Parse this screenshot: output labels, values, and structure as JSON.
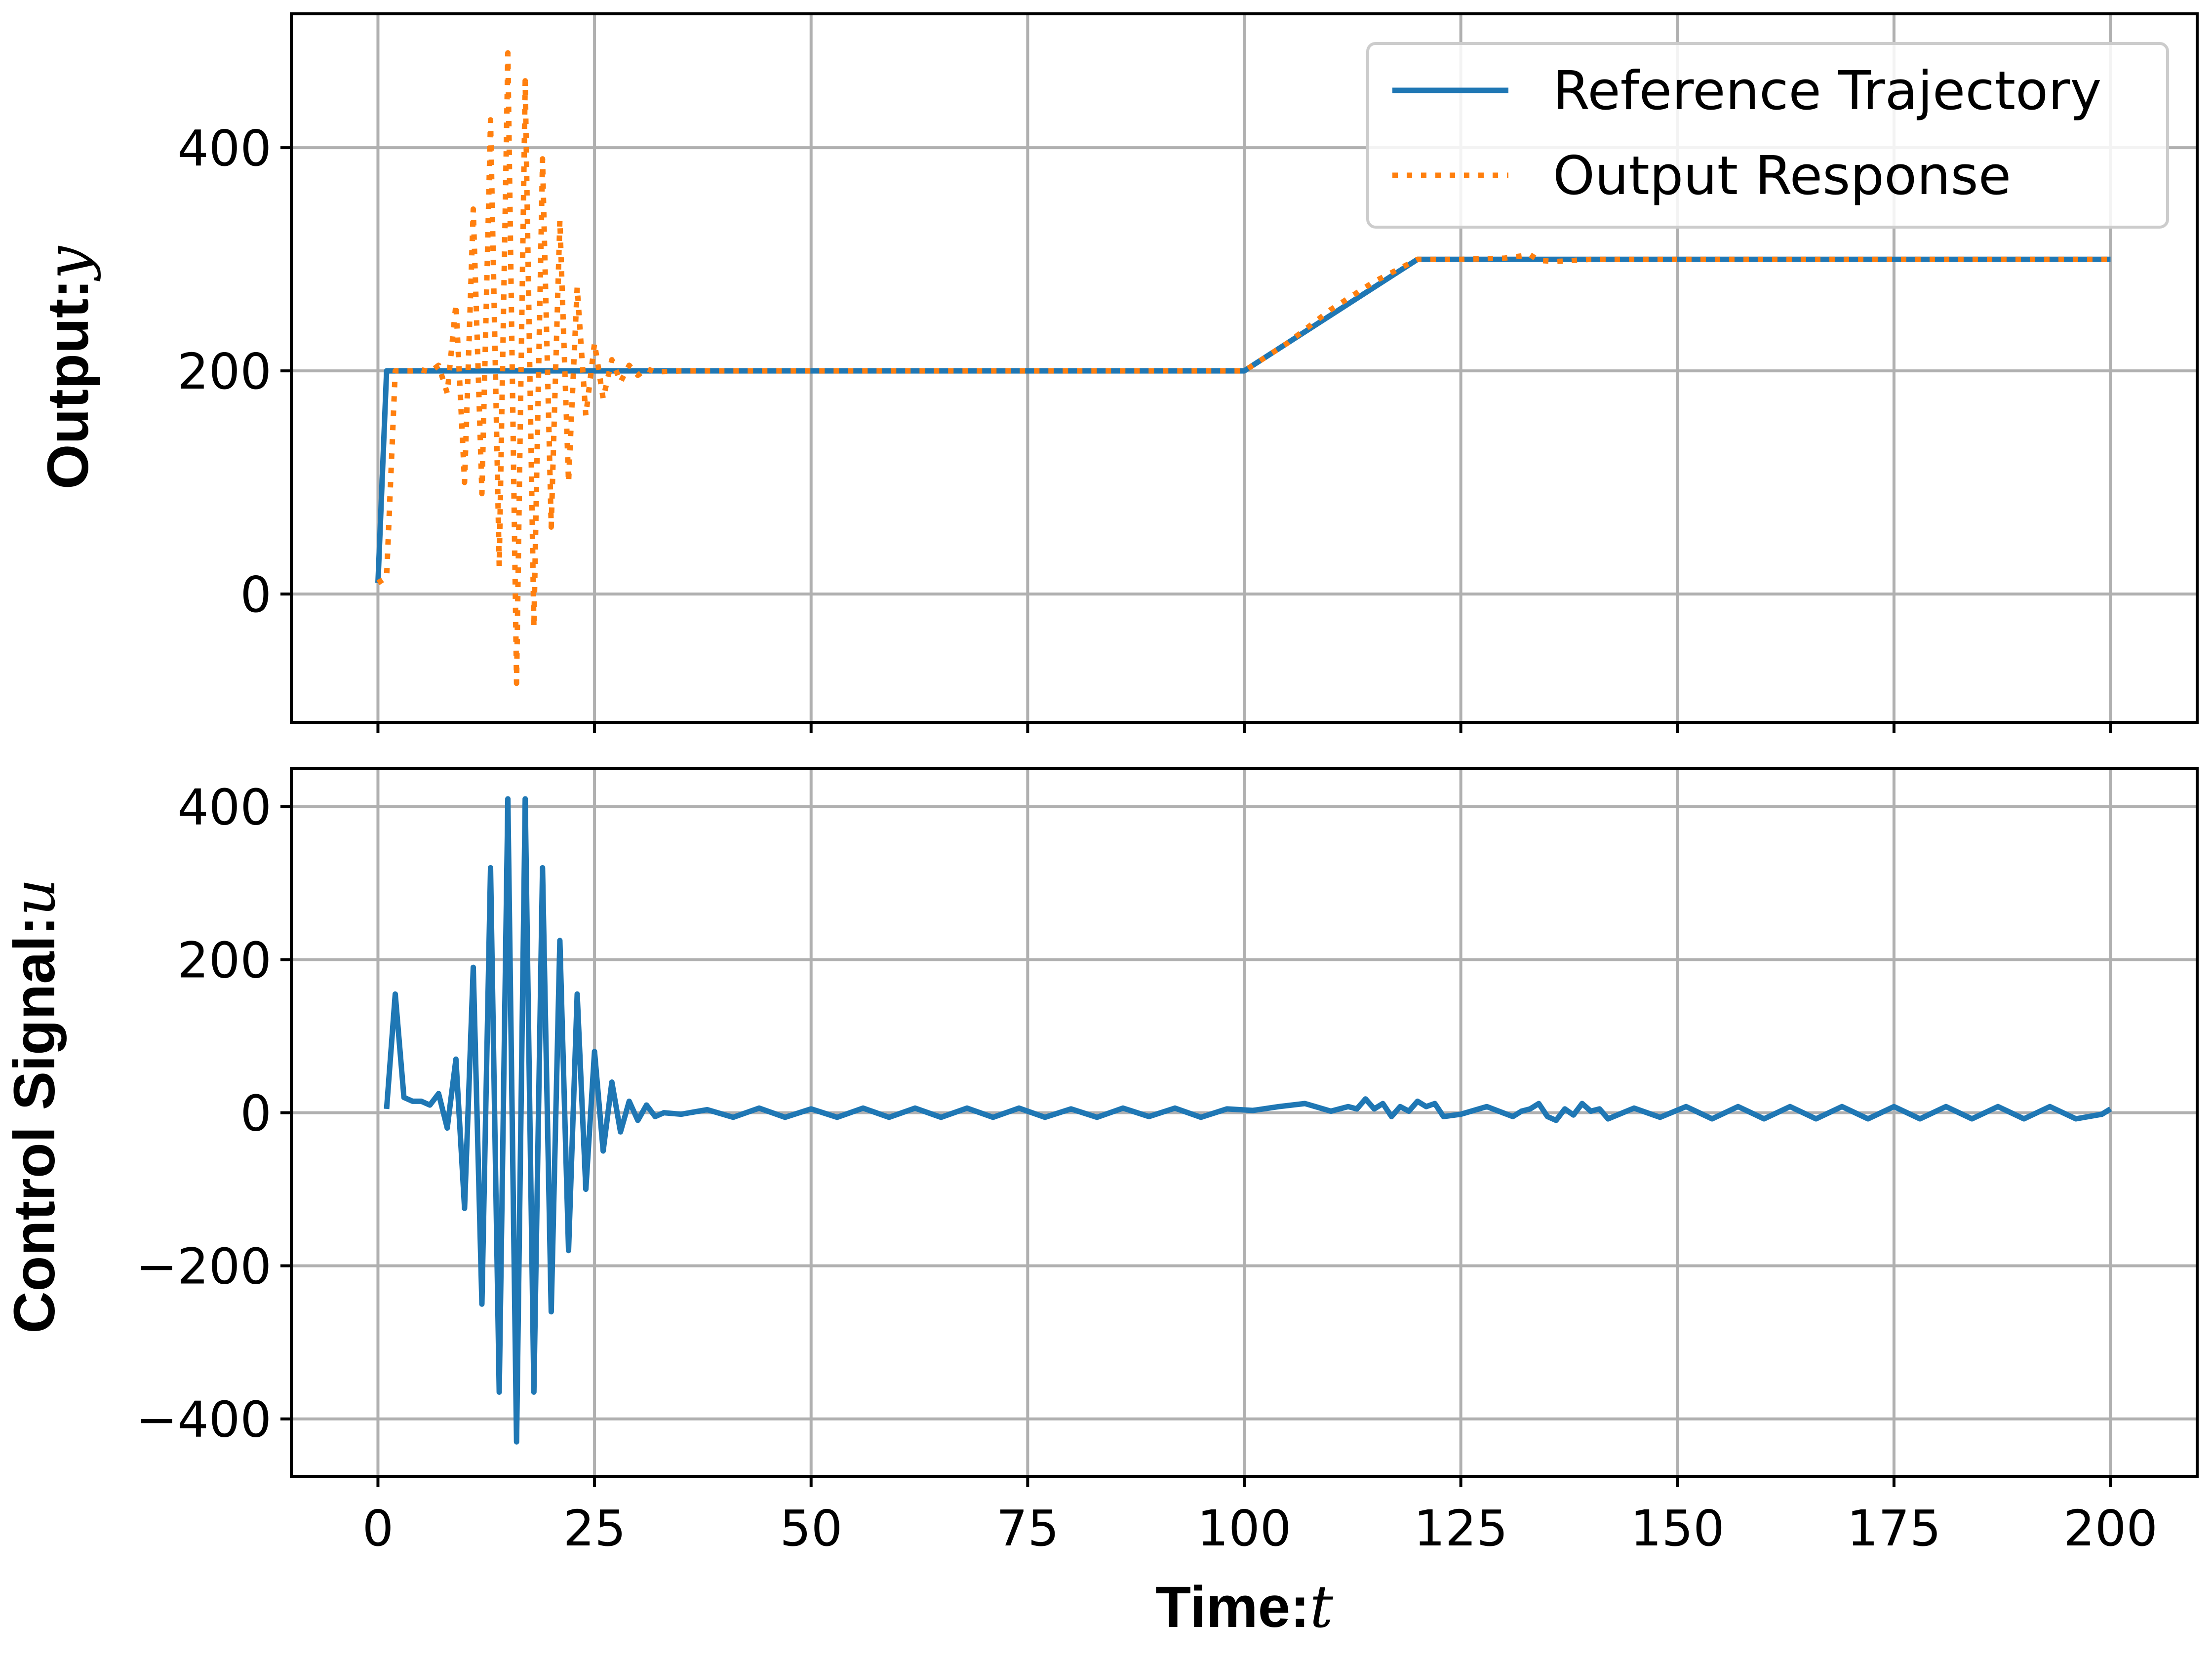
{
  "chart_data": [
    {
      "type": "line",
      "ylabel_prefix": "Output:",
      "ylabel_var": "y",
      "xlim": [
        -10,
        210
      ],
      "ylim": [
        -115,
        520
      ],
      "xticks": [
        0,
        25,
        50,
        75,
        100,
        125,
        150,
        175,
        200
      ],
      "yticks": [
        0,
        200,
        400
      ],
      "ytick_labels": [
        "0",
        "200",
        "400"
      ],
      "grid": true,
      "show_xtick_labels": false,
      "legend": {
        "placement": "upper right",
        "entries": [
          "Reference Trajectory",
          "Output Response"
        ]
      },
      "series": [
        {
          "name": "Reference Trajectory",
          "color": "#1f77b4",
          "style": "solid",
          "x": [
            0,
            1,
            100,
            120,
            200
          ],
          "y": [
            10,
            200,
            200,
            300,
            300
          ]
        },
        {
          "name": "Output Response",
          "color": "#ff7f0e",
          "style": "dotted",
          "x": [
            0,
            1,
            2,
            3,
            4,
            5,
            6,
            7,
            8,
            9,
            10,
            11,
            12,
            13,
            14,
            15,
            16,
            17,
            18,
            19,
            20,
            21,
            22,
            23,
            24,
            25,
            26,
            27,
            28,
            29,
            30,
            31,
            32,
            35,
            40,
            60,
            80,
            100,
            105,
            110,
            115,
            120,
            125,
            130,
            133,
            134,
            136,
            140,
            150,
            200
          ],
          "y": [
            10,
            15,
            200,
            200,
            200,
            201,
            199,
            205,
            180,
            260,
            100,
            345,
            90,
            425,
            25,
            485,
            -80,
            460,
            -30,
            390,
            60,
            335,
            100,
            275,
            160,
            225,
            175,
            210,
            190,
            205,
            196,
            202,
            199,
            200,
            200,
            200,
            200,
            200,
            225,
            255,
            280,
            300,
            300,
            301,
            304,
            299,
            298,
            300,
            300,
            300
          ]
        }
      ]
    },
    {
      "type": "line",
      "ylabel_prefix": "Control Signal:",
      "ylabel_var": "u",
      "xlabel_prefix": "Time:",
      "xlabel_var": "t",
      "xlim": [
        -10,
        210
      ],
      "ylim": [
        -475,
        450
      ],
      "xticks": [
        0,
        25,
        50,
        75,
        100,
        125,
        150,
        175,
        200
      ],
      "xtick_labels": [
        "0",
        "25",
        "50",
        "75",
        "100",
        "125",
        "150",
        "175",
        "200"
      ],
      "yticks": [
        -400,
        -200,
        0,
        200,
        400
      ],
      "ytick_labels": [
        "−400",
        "−200",
        "0",
        "200",
        "400"
      ],
      "grid": true,
      "show_xtick_labels": true,
      "series": [
        {
          "color": "#1f77b4",
          "style": "solid",
          "x": [
            1,
            2,
            3,
            4,
            5,
            6,
            7,
            8,
            9,
            10,
            11,
            12,
            13,
            14,
            15,
            16,
            17,
            18,
            19,
            20,
            21,
            22,
            23,
            24,
            25,
            26,
            27,
            28,
            29,
            30,
            31,
            32,
            33,
            35,
            38,
            41,
            44,
            47,
            50,
            53,
            56,
            59,
            62,
            65,
            68,
            71,
            74,
            77,
            80,
            83,
            86,
            89,
            92,
            95,
            98,
            101,
            104,
            107,
            110,
            112,
            113,
            114,
            115,
            116,
            117,
            118,
            119,
            120,
            121,
            122,
            123,
            125,
            128,
            131,
            132,
            133,
            134,
            135,
            136,
            137,
            138,
            139,
            140,
            141,
            142,
            145,
            148,
            151,
            154,
            157,
            160,
            163,
            166,
            169,
            172,
            175,
            178,
            181,
            184,
            187,
            190,
            193,
            196,
            199,
            200
          ],
          "y": [
            5,
            155,
            20,
            15,
            15,
            10,
            25,
            -20,
            70,
            -125,
            190,
            -250,
            320,
            -365,
            410,
            -430,
            410,
            -365,
            320,
            -260,
            225,
            -180,
            155,
            -100,
            80,
            -50,
            40,
            -25,
            15,
            -10,
            10,
            -5,
            0,
            -2,
            4,
            -6,
            6,
            -6,
            5,
            -6,
            6,
            -6,
            6,
            -6,
            6,
            -6,
            6,
            -6,
            5,
            -6,
            6,
            -5,
            6,
            -6,
            5,
            3,
            8,
            12,
            2,
            8,
            5,
            18,
            5,
            12,
            -5,
            8,
            2,
            15,
            8,
            12,
            -5,
            -2,
            8,
            -5,
            2,
            5,
            12,
            -5,
            -10,
            5,
            -3,
            12,
            2,
            5,
            -8,
            6,
            -6,
            8,
            -8,
            8,
            -8,
            8,
            -8,
            8,
            -8,
            8,
            -8,
            8,
            -8,
            8,
            -8,
            8,
            -8,
            -2,
            5
          ]
        }
      ]
    }
  ]
}
